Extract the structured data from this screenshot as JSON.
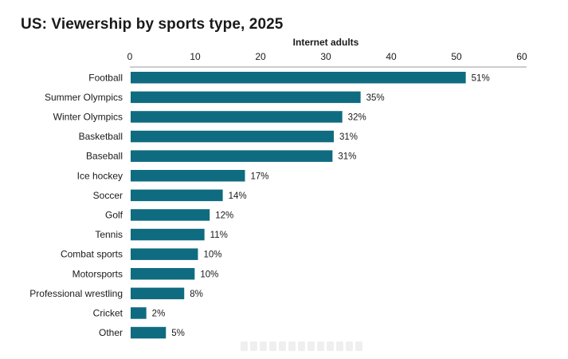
{
  "chart_data": {
    "type": "bar",
    "orientation": "horizontal",
    "title": "US: Viewership by sports type, 2025",
    "xlabel": "Internet adults",
    "ylabel": "",
    "xlim": [
      0,
      60
    ],
    "x_ticks": [
      0,
      10,
      20,
      30,
      40,
      50,
      60
    ],
    "x_axis_position": "top",
    "grid": false,
    "categories": [
      "Football",
      "Summer Olympics",
      "Winter Olympics",
      "Basketball",
      "Baseball",
      "Ice hockey",
      "Soccer",
      "Golf",
      "Tennis",
      "Combat sports",
      "Motorsports",
      "Professional wrestling",
      "Cricket",
      "Other"
    ],
    "values": [
      51.3,
      35.2,
      32.4,
      31.1,
      30.9,
      17.5,
      14.1,
      12.1,
      11.3,
      10.3,
      9.8,
      8.2,
      2.4,
      5.4
    ],
    "data_labels": [
      "51%",
      "35%",
      "32%",
      "31%",
      "31%",
      "17%",
      "14%",
      "12%",
      "11%",
      "10%",
      "10%",
      "8%",
      "2%",
      "5%"
    ],
    "bar_color": "#0f6b80"
  }
}
